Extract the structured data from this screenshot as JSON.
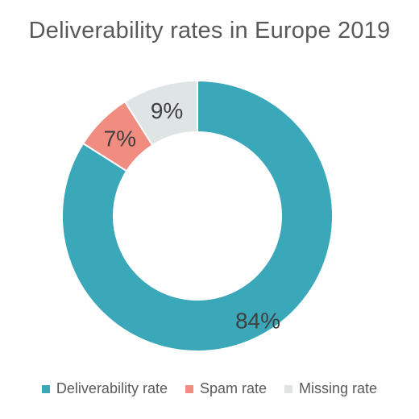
{
  "chart_data": {
    "type": "pie",
    "title": "Deliverability rates in Europe 2019",
    "donut": true,
    "categories": [
      "Deliverability rate",
      "Spam rate",
      "Missing rate"
    ],
    "values": [
      84,
      7,
      9
    ],
    "data_labels": [
      "84%",
      "7%",
      "9%"
    ],
    "colors": [
      "#3ba8ba",
      "#f08c80",
      "#dfe4e5"
    ],
    "legend_position": "bottom"
  }
}
